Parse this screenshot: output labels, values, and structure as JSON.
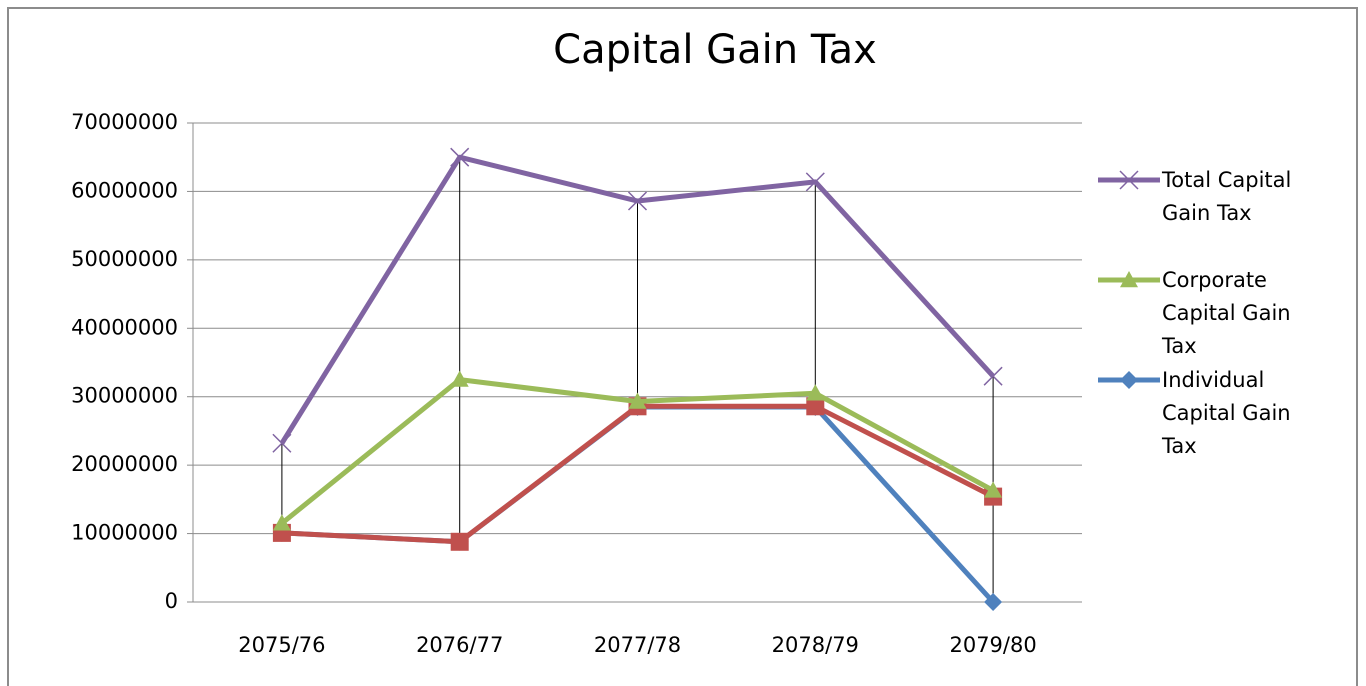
{
  "chart_data": {
    "type": "line",
    "title": "Capital Gain Tax",
    "categories": [
      "2075/76",
      "2076/77",
      "2077/78",
      "2078/79",
      "2079/80"
    ],
    "series": [
      {
        "name": "Total Capital Gain Tax",
        "color": "#8064a2",
        "marker": "x",
        "values": [
          23200000,
          65000000,
          58600000,
          61400000,
          33000000
        ]
      },
      {
        "name": "Corporate Capital Gain Tax",
        "color": "#9bbb59",
        "marker": "triangle",
        "values": [
          11500000,
          32500000,
          29300000,
          30500000,
          16300000
        ]
      },
      {
        "name": "Individual Capital Gain Tax",
        "color": "#4f81bd",
        "marker": "diamond",
        "values": [
          10100000,
          8800000,
          28500000,
          28500000,
          0
        ]
      },
      {
        "color": "#c0504d",
        "marker": "square",
        "values": [
          10100000,
          8800000,
          28600000,
          28600000,
          15400000
        ]
      }
    ],
    "ylim": [
      0,
      70000000
    ],
    "yticks": [
      0,
      10000000,
      20000000,
      30000000,
      40000000,
      50000000,
      60000000,
      70000000
    ],
    "grid": true,
    "drop_lines": true,
    "legend": "right"
  }
}
